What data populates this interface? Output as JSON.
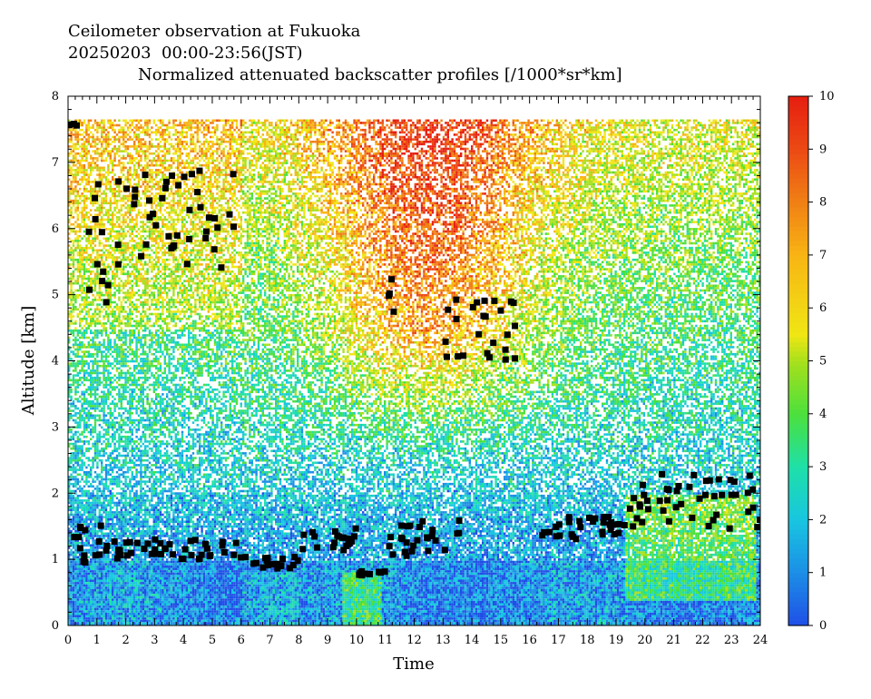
{
  "header": {
    "line1": "Ceilometer observation at Fukuoka",
    "line2": "20250203  00:00-23:56(JST)",
    "line3": "Normalized attenuated backscatter profiles [/1000*sr*km]"
  },
  "chart_data": {
    "type": "heatmap",
    "title": "Normalized attenuated backscatter profiles [/1000*sr*km]",
    "xlabel": "Time",
    "ylabel": "Altitude [km]",
    "xlim": [
      0,
      24
    ],
    "ylim": [
      0,
      8
    ],
    "x_ticks": [
      "0",
      "1",
      "2",
      "3",
      "4",
      "5",
      "6",
      "7",
      "8",
      "9",
      "10",
      "11",
      "12",
      "13",
      "14",
      "15",
      "16",
      "17",
      "18",
      "19",
      "20",
      "21",
      "22",
      "23",
      "24"
    ],
    "y_ticks": [
      "0",
      "1",
      "2",
      "3",
      "4",
      "5",
      "6",
      "7",
      "8"
    ],
    "colorbar": {
      "range": [
        0,
        10
      ],
      "ticks": [
        "0",
        "1",
        "2",
        "3",
        "4",
        "5",
        "6",
        "7",
        "8",
        "9",
        "10"
      ],
      "colors": [
        "#1f4fe6",
        "#1c8ee6",
        "#18c6e0",
        "#1ee0a8",
        "#4ce03c",
        "#a8e01c",
        "#f0e614",
        "#f8b414",
        "#f08014",
        "#ec4a14",
        "#e61e10"
      ]
    },
    "data_top_km": 7.65,
    "cloud_base_markers": {
      "color": "#000000",
      "segments": [
        {
          "x": [
            0.0,
            1.6
          ],
          "y": [
            0.95,
            1.6
          ]
        },
        {
          "x": [
            1.6,
            6.0
          ],
          "y": [
            1.0,
            1.3
          ]
        },
        {
          "x": [
            6.0,
            8.0
          ],
          "y": [
            0.85,
            1.05
          ]
        },
        {
          "x": [
            8.0,
            10.0
          ],
          "y": [
            1.0,
            1.5
          ]
        },
        {
          "x": [
            10.0,
            11.0
          ],
          "y": [
            0.75,
            0.85
          ]
        },
        {
          "x": [
            11.0,
            13.6
          ],
          "y": [
            1.0,
            1.6
          ]
        },
        {
          "x": [
            16.3,
            19.3
          ],
          "y": [
            1.3,
            1.65
          ]
        },
        {
          "x": [
            19.3,
            24.0
          ],
          "y": [
            1.4,
            2.3
          ]
        },
        {
          "x": [
            0.0,
            0.4
          ],
          "y": [
            7.55,
            7.65
          ]
        },
        {
          "x": [
            0.6,
            1.7
          ],
          "y": [
            4.7,
            6.8
          ]
        },
        {
          "x": [
            1.7,
            5.9
          ],
          "y": [
            5.4,
            6.9
          ]
        },
        {
          "x": [
            11.0,
            11.3
          ],
          "y": [
            4.7,
            5.35
          ]
        },
        {
          "x": [
            13.0,
            15.5
          ],
          "y": [
            4.0,
            4.95
          ]
        }
      ]
    }
  }
}
